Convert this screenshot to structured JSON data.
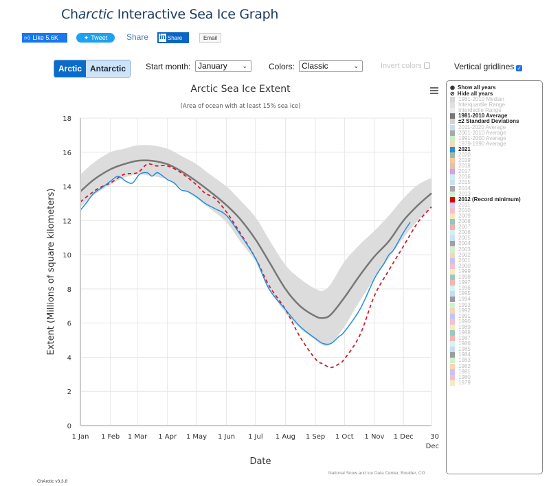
{
  "header": {
    "title_prefix": "Ch",
    "title_italic": "arctic",
    "title_rest": " Interactive Sea Ice Graph"
  },
  "social": {
    "like_label": "Like 5.6K",
    "tweet_label": "Tweet",
    "share_label": "Share",
    "linkedin_in": "in",
    "linkedin_label": "Share",
    "email_label": "Email"
  },
  "controls": {
    "hemisphere": [
      "Arctic",
      "Antarctic"
    ],
    "selected_hemisphere": "Arctic",
    "start_month_label": "Start month:",
    "start_month_value": "January",
    "colors_label": "Colors:",
    "colors_value": "Classic",
    "invert_colors_label": "Invert colors",
    "invert_colors_checked": false,
    "vertical_gridlines_label": "Vertical gridlines",
    "vertical_gridlines_checked": true
  },
  "legend": {
    "show_all": "Show all years",
    "hide_all": "Hide all years",
    "items": [
      {
        "label": "1981-2010 Median",
        "color": "#d6d6d6",
        "active": false
      },
      {
        "label": "Interquartile Range",
        "color": "#e0e0e0",
        "active": false
      },
      {
        "label": "Interdecile Range",
        "color": "#ececec",
        "active": false
      },
      {
        "label": "1981-2010 Average",
        "color": "#777777",
        "active": true
      },
      {
        "label": "±2 Standard Deviations",
        "color": "#d2d2d2",
        "active": true
      },
      {
        "label": "2011-2020 Average",
        "color": "#c9dcf2",
        "active": false
      },
      {
        "label": "2001-2010 Average",
        "color": "#a8a8a8",
        "active": false
      },
      {
        "label": "1991-2000 Average",
        "color": "#c8efc8",
        "active": false
      },
      {
        "label": "1979-1990 Average",
        "color": "#f8d9b8",
        "active": false
      },
      {
        "label": "2021",
        "color": "#1f8fe0",
        "active": true
      },
      {
        "label": "2020",
        "color": "#9fb8a8",
        "active": false
      },
      {
        "label": "2019",
        "color": "#f8c8a0",
        "active": false
      },
      {
        "label": "2018",
        "color": "#e0c0b0",
        "active": false
      },
      {
        "label": "2017",
        "color": "#d8a0e0",
        "active": false
      },
      {
        "label": "2016",
        "color": "#d0ecec",
        "active": false
      },
      {
        "label": "2015",
        "color": "#cce0f4",
        "active": false
      },
      {
        "label": "2014",
        "color": "#a8a8a8",
        "active": false
      },
      {
        "label": "2013",
        "color": "#d0f0d0",
        "active": false
      },
      {
        "label": "2012 (Record minimum)",
        "color": "#e00000",
        "active": true
      },
      {
        "label": "2011",
        "color": "#d4d0f4",
        "active": false
      },
      {
        "label": "2010",
        "color": "#f4c0cc",
        "active": false
      },
      {
        "label": "2009",
        "color": "#f6e6c0",
        "active": false
      },
      {
        "label": "2008",
        "color": "#8ec8c0",
        "active": false
      },
      {
        "label": "2007",
        "color": "#f4b0b0",
        "active": false
      },
      {
        "label": "2006",
        "color": "#d4f0ee",
        "active": false
      },
      {
        "label": "2005",
        "color": "#cce0f8",
        "active": false
      },
      {
        "label": "2004",
        "color": "#a0a0a0",
        "active": false
      },
      {
        "label": "2003",
        "color": "#ccf4cc",
        "active": false
      },
      {
        "label": "2002",
        "color": "#f8d4b8",
        "active": false
      },
      {
        "label": "2001",
        "color": "#c4c4f4",
        "active": false
      },
      {
        "label": "2000",
        "color": "#f4c0d0",
        "active": false
      },
      {
        "label": "1999",
        "color": "#f4ecc0",
        "active": false
      },
      {
        "label": "1998",
        "color": "#98c8c4",
        "active": false
      },
      {
        "label": "1997",
        "color": "#f4b4b4",
        "active": false
      },
      {
        "label": "1996",
        "color": "#d4f4f0",
        "active": false
      },
      {
        "label": "1995",
        "color": "#c8dcf8",
        "active": false
      },
      {
        "label": "1994",
        "color": "#9c9c9c",
        "active": false
      },
      {
        "label": "1993",
        "color": "#ccf4cc",
        "active": false
      },
      {
        "label": "1992",
        "color": "#f8d4b8",
        "active": false
      },
      {
        "label": "1991",
        "color": "#c4c4f4",
        "active": false
      },
      {
        "label": "1990",
        "color": "#f4c0d0",
        "active": false
      },
      {
        "label": "1989",
        "color": "#f4ecc0",
        "active": false
      },
      {
        "label": "1988",
        "color": "#98c8c4",
        "active": false
      },
      {
        "label": "1987",
        "color": "#f4b4b4",
        "active": false
      },
      {
        "label": "1986",
        "color": "#d4f4f0",
        "active": false
      },
      {
        "label": "1985",
        "color": "#c8dcf8",
        "active": false
      },
      {
        "label": "1984",
        "color": "#9c9c9c",
        "active": false
      },
      {
        "label": "1983",
        "color": "#ccf4cc",
        "active": false
      },
      {
        "label": "1982",
        "color": "#f8d4b8",
        "active": false
      },
      {
        "label": "1981",
        "color": "#c4c4f4",
        "active": false
      },
      {
        "label": "1980",
        "color": "#f4c0d0",
        "active": false
      },
      {
        "label": "1979",
        "color": "#f4ecc0",
        "active": false
      }
    ]
  },
  "footer": {
    "credit": "National Snow and Ice Data Center, Boulder, CO",
    "version": "ChArctic v3.3.8"
  },
  "chart_data": {
    "type": "line",
    "title": "Arctic Sea Ice Extent",
    "subtitle": "(Area of ocean with at least 15% sea ice)",
    "xlabel": "Date",
    "ylabel": "Extent (Millions of square kilometers)",
    "xlim": [
      1,
      364
    ],
    "ylim": [
      0,
      18
    ],
    "yticks": [
      0,
      2,
      4,
      6,
      8,
      10,
      12,
      14,
      16,
      18
    ],
    "xticks": [
      {
        "day": 1,
        "label": "1 Jan"
      },
      {
        "day": 32,
        "label": "1 Feb"
      },
      {
        "day": 60,
        "label": "1 Mar"
      },
      {
        "day": 91,
        "label": "1 Apr"
      },
      {
        "day": 121,
        "label": "1 May"
      },
      {
        "day": 152,
        "label": "1 Jun"
      },
      {
        "day": 182,
        "label": "1 Jul"
      },
      {
        "day": 213,
        "label": "1 Aug"
      },
      {
        "day": 244,
        "label": "1 Sep"
      },
      {
        "day": 274,
        "label": "1 Oct"
      },
      {
        "day": 305,
        "label": "1 Nov"
      },
      {
        "day": 335,
        "label": "1 Dec"
      },
      {
        "day": 364,
        "label": "30",
        "label2": "Dec"
      }
    ],
    "grid": {
      "horizontal": true,
      "vertical": true
    },
    "series": [
      {
        "name": "±2 Standard Deviations",
        "kind": "band",
        "color": "#dcdcdc",
        "x": [
          1,
          15,
          32,
          46,
          60,
          75,
          91,
          105,
          121,
          135,
          152,
          166,
          182,
          196,
          213,
          228,
          244,
          252,
          260,
          274,
          290,
          305,
          320,
          335,
          350,
          364
        ],
        "upper": [
          14.7,
          15.4,
          16.0,
          16.2,
          16.4,
          16.4,
          16.2,
          15.8,
          15.3,
          14.7,
          14.0,
          13.2,
          12.2,
          10.9,
          9.4,
          8.6,
          8.0,
          7.9,
          8.3,
          9.6,
          10.6,
          11.4,
          12.3,
          13.3,
          14.1,
          14.5
        ],
        "lower": [
          12.8,
          13.5,
          14.1,
          14.5,
          14.7,
          14.6,
          14.4,
          13.9,
          13.3,
          12.7,
          11.9,
          10.8,
          9.6,
          8.0,
          6.6,
          5.7,
          5.0,
          4.7,
          4.8,
          5.8,
          7.3,
          8.6,
          9.8,
          11.0,
          12.0,
          12.8
        ]
      },
      {
        "name": "1981-2010 Average",
        "kind": "line",
        "color": "#777777",
        "x": [
          1,
          15,
          32,
          46,
          60,
          75,
          91,
          105,
          121,
          135,
          152,
          166,
          182,
          196,
          213,
          228,
          244,
          252,
          260,
          274,
          290,
          305,
          320,
          335,
          350,
          364
        ],
        "values": [
          13.7,
          14.4,
          15.0,
          15.3,
          15.5,
          15.5,
          15.3,
          14.9,
          14.3,
          13.7,
          12.9,
          12.1,
          10.9,
          9.6,
          8.0,
          7.0,
          6.4,
          6.3,
          6.5,
          7.5,
          8.8,
          9.9,
          10.8,
          12.0,
          12.9,
          13.6
        ]
      },
      {
        "name": "2012 (Record minimum)",
        "kind": "dashed",
        "color": "#d01c2a",
        "x": [
          1,
          10,
          20,
          32,
          46,
          60,
          70,
          80,
          91,
          105,
          121,
          130,
          140,
          152,
          166,
          182,
          196,
          213,
          228,
          244,
          252,
          260,
          268,
          274,
          290,
          305,
          320,
          335,
          350,
          364
        ],
        "values": [
          13.1,
          13.5,
          13.9,
          14.2,
          14.7,
          14.8,
          15.3,
          15.2,
          15.2,
          14.8,
          14.1,
          13.6,
          13.3,
          12.5,
          11.3,
          9.8,
          8.2,
          6.8,
          5.2,
          3.9,
          3.6,
          3.4,
          3.6,
          3.9,
          5.3,
          7.6,
          9.1,
          10.5,
          11.9,
          12.8
        ]
      },
      {
        "name": "2021",
        "kind": "line",
        "color": "#1f8fe0",
        "x": [
          1,
          8,
          15,
          25,
          32,
          40,
          48,
          55,
          62,
          70,
          75,
          80,
          84,
          91,
          98,
          105,
          112,
          121,
          130,
          140,
          152,
          166,
          182,
          196,
          213,
          228,
          244,
          252,
          260,
          268,
          274,
          290,
          305,
          315,
          320,
          325,
          335,
          342
        ],
        "values": [
          12.6,
          13.1,
          13.6,
          14.0,
          14.3,
          14.6,
          14.3,
          14.2,
          14.7,
          14.8,
          14.6,
          14.8,
          14.7,
          14.4,
          14.2,
          13.8,
          13.7,
          13.4,
          13.0,
          12.7,
          12.3,
          11.2,
          9.8,
          8.0,
          6.8,
          5.8,
          5.1,
          4.8,
          4.8,
          5.2,
          5.5,
          6.8,
          8.6,
          9.5,
          10.0,
          10.3,
          11.3,
          11.9
        ]
      }
    ],
    "credit": "National Snow and Ice Data Center, Boulder, CO"
  }
}
